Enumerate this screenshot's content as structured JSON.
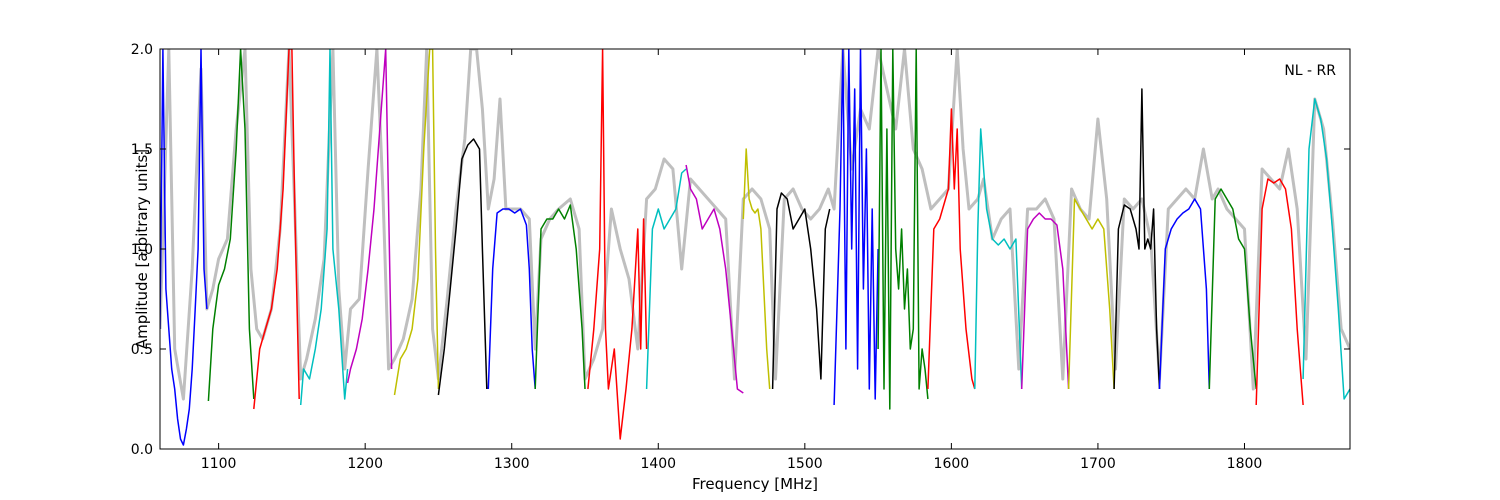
{
  "chart_data": {
    "type": "line",
    "xlabel": "Frequency [MHz]",
    "ylabel": "Amplitude [arbitrary units]",
    "annotation": "NL - RR",
    "xlim": [
      1060,
      1872
    ],
    "ylim": [
      0.0,
      2.0
    ],
    "x_ticks": [
      "1100",
      "1200",
      "1300",
      "1400",
      "1500",
      "1600",
      "1700",
      "1800"
    ],
    "x_tick_values": [
      1100,
      1200,
      1300,
      1400,
      1500,
      1600,
      1700,
      1800
    ],
    "y_ticks": [
      "0.0",
      "0.5",
      "1.0",
      "1.5",
      "2.0"
    ],
    "y_tick_values": [
      0.0,
      0.5,
      1.0,
      1.5,
      2.0
    ],
    "grid": false,
    "reference": {
      "color": "#bfbfbf",
      "x": [
        1060,
        1066,
        1070,
        1076,
        1082,
        1088,
        1092,
        1096,
        1100,
        1106,
        1112,
        1118,
        1122,
        1126,
        1130,
        1136,
        1142,
        1148,
        1152,
        1156,
        1160,
        1166,
        1172,
        1178,
        1182,
        1186,
        1190,
        1196,
        1202,
        1208,
        1212,
        1216,
        1220,
        1226,
        1232,
        1238,
        1242,
        1246,
        1250,
        1256,
        1262,
        1268,
        1272,
        1276,
        1280,
        1284,
        1288,
        1292,
        1296,
        1300,
        1306,
        1312,
        1316,
        1320,
        1326,
        1332,
        1340,
        1346,
        1350,
        1356,
        1362,
        1368,
        1374,
        1380,
        1386,
        1392,
        1398,
        1404,
        1410,
        1416,
        1422,
        1428,
        1434,
        1440,
        1446,
        1452,
        1458,
        1464,
        1470,
        1476,
        1480,
        1486,
        1492,
        1498,
        1504,
        1510,
        1516,
        1520,
        1526,
        1532,
        1538,
        1544,
        1550,
        1556,
        1562,
        1568,
        1574,
        1580,
        1586,
        1592,
        1598,
        1604,
        1608,
        1612,
        1618,
        1622,
        1628,
        1634,
        1640,
        1646,
        1652,
        1658,
        1664,
        1670,
        1676,
        1682,
        1688,
        1694,
        1700,
        1706,
        1712,
        1718,
        1724,
        1730,
        1736,
        1742,
        1748,
        1754,
        1760,
        1766,
        1772,
        1778,
        1782,
        1788,
        1794,
        1800,
        1806,
        1812,
        1818,
        1824,
        1830,
        1836,
        1842,
        1848,
        1854,
        1860,
        1866,
        1872
      ],
      "y": [
        0.6,
        2.0,
        0.5,
        0.25,
        0.9,
        1.9,
        0.7,
        0.8,
        0.95,
        1.05,
        1.6,
        2.0,
        0.9,
        0.6,
        0.55,
        0.7,
        1.1,
        2.0,
        1.2,
        0.35,
        0.45,
        0.65,
        0.95,
        2.0,
        0.8,
        0.4,
        0.7,
        0.75,
        1.4,
        2.0,
        1.3,
        0.4,
        0.45,
        0.55,
        0.75,
        1.3,
        2.0,
        0.6,
        0.35,
        0.75,
        1.2,
        1.55,
        2.0,
        2.0,
        1.7,
        1.2,
        1.35,
        1.75,
        1.2,
        1.2,
        1.2,
        1.15,
        0.5,
        1.05,
        1.15,
        1.2,
        1.25,
        1.1,
        0.35,
        0.45,
        0.6,
        1.2,
        1.0,
        0.85,
        0.5,
        1.25,
        1.3,
        1.45,
        1.4,
        0.9,
        1.35,
        1.3,
        1.25,
        1.2,
        1.15,
        0.35,
        1.25,
        1.3,
        1.25,
        1.1,
        0.35,
        1.25,
        1.3,
        1.2,
        1.15,
        1.2,
        1.3,
        1.2,
        2.0,
        1.4,
        1.7,
        1.6,
        2.0,
        1.8,
        1.6,
        2.0,
        1.5,
        1.4,
        1.2,
        1.25,
        1.3,
        2.0,
        1.5,
        1.2,
        1.25,
        1.35,
        1.05,
        1.15,
        1.2,
        0.4,
        1.2,
        1.2,
        1.25,
        1.15,
        0.35,
        1.3,
        1.2,
        1.15,
        1.65,
        1.25,
        0.4,
        1.25,
        1.2,
        1.25,
        1.05,
        0.35,
        1.2,
        1.25,
        1.3,
        1.25,
        1.5,
        1.25,
        1.3,
        1.2,
        1.15,
        1.1,
        0.3,
        1.4,
        1.35,
        1.3,
        1.5,
        1.2,
        0.45,
        1.75,
        1.6,
        1.15,
        0.6,
        0.5
      ]
    },
    "series": [
      {
        "color": "#0000ff",
        "x": [
          1060,
          1062,
          1064,
          1066,
          1068,
          1070,
          1072,
          1074,
          1076,
          1078,
          1080,
          1082,
          1084,
          1086,
          1088,
          1090,
          1092
        ],
        "y": [
          0.6,
          2.0,
          0.8,
          0.6,
          0.4,
          0.3,
          0.15,
          0.05,
          0.02,
          0.1,
          0.2,
          0.4,
          0.7,
          1.0,
          2.0,
          0.9,
          0.7
        ]
      },
      {
        "color": "#008000",
        "x": [
          1093,
          1096,
          1100,
          1104,
          1108,
          1112,
          1115,
          1118,
          1121,
          1124
        ],
        "y": [
          0.24,
          0.6,
          0.82,
          0.9,
          1.05,
          1.5,
          2.0,
          1.6,
          0.6,
          0.25
        ]
      },
      {
        "color": "#ff0000",
        "x": [
          1124,
          1128,
          1132,
          1136,
          1140,
          1144,
          1148,
          1150,
          1152,
          1155
        ],
        "y": [
          0.2,
          0.5,
          0.6,
          0.7,
          0.9,
          1.3,
          2.0,
          2.0,
          1.2,
          0.25
        ]
      },
      {
        "color": "#00bfbf",
        "x": [
          1156,
          1158,
          1162,
          1166,
          1170,
          1174,
          1176,
          1178,
          1182,
          1186,
          1188
        ],
        "y": [
          0.22,
          0.4,
          0.35,
          0.5,
          0.7,
          1.1,
          2.0,
          1.0,
          0.7,
          0.25,
          0.4
        ]
      },
      {
        "color": "#bf00bf",
        "x": [
          1188,
          1190,
          1194,
          1198,
          1202,
          1206,
          1210,
          1214,
          1218
        ],
        "y": [
          0.33,
          0.4,
          0.5,
          0.65,
          0.9,
          1.2,
          1.6,
          2.0,
          0.4
        ]
      },
      {
        "color": "#bfbf00",
        "x": [
          1220,
          1224,
          1228,
          1232,
          1236,
          1240,
          1244,
          1246,
          1248,
          1250
        ],
        "y": [
          0.27,
          0.45,
          0.5,
          0.6,
          0.85,
          1.5,
          2.0,
          2.0,
          1.0,
          0.3
        ]
      },
      {
        "color": "#000000",
        "x": [
          1250,
          1254,
          1258,
          1262,
          1266,
          1270,
          1274,
          1278,
          1280,
          1283
        ],
        "y": [
          0.27,
          0.5,
          0.8,
          1.1,
          1.45,
          1.52,
          1.55,
          1.5,
          1.0,
          0.3
        ]
      },
      {
        "color": "#0000ff",
        "x": [
          1284,
          1287,
          1290,
          1294,
          1298,
          1302,
          1306,
          1310,
          1312,
          1314,
          1316
        ],
        "y": [
          0.3,
          0.9,
          1.18,
          1.2,
          1.2,
          1.18,
          1.2,
          1.12,
          0.9,
          0.5,
          0.3
        ]
      },
      {
        "color": "#008000",
        "x": [
          1316,
          1320,
          1324,
          1328,
          1332,
          1336,
          1340,
          1344,
          1348,
          1350
        ],
        "y": [
          0.3,
          1.1,
          1.15,
          1.15,
          1.2,
          1.15,
          1.22,
          1.0,
          0.6,
          0.3
        ]
      },
      {
        "color": "#ff0000",
        "x": [
          1352,
          1356,
          1360,
          1362,
          1364,
          1366,
          1370,
          1374,
          1378,
          1382,
          1386,
          1388,
          1390,
          1392
        ],
        "y": [
          0.3,
          0.6,
          1.0,
          2.0,
          0.6,
          0.3,
          0.5,
          0.05,
          0.3,
          0.6,
          1.1,
          0.5,
          1.15,
          0.5
        ]
      },
      {
        "color": "#00bfbf",
        "x": [
          1392,
          1396,
          1400,
          1404,
          1408,
          1412,
          1416,
          1419
        ],
        "y": [
          0.3,
          1.1,
          1.2,
          1.1,
          1.15,
          1.2,
          1.38,
          1.4
        ]
      },
      {
        "color": "#bf00bf",
        "x": [
          1419,
          1422,
          1426,
          1430,
          1434,
          1438,
          1442,
          1446,
          1450,
          1454,
          1458
        ],
        "y": [
          1.42,
          1.3,
          1.25,
          1.1,
          1.15,
          1.2,
          1.1,
          0.9,
          0.6,
          0.3,
          0.28
        ]
      },
      {
        "color": "#bfbf00",
        "x": [
          1458,
          1460,
          1462,
          1464,
          1466,
          1468,
          1470,
          1472,
          1474,
          1476
        ],
        "y": [
          1.15,
          1.5,
          1.25,
          1.2,
          1.18,
          1.2,
          1.1,
          0.8,
          0.5,
          0.3
        ]
      },
      {
        "color": "#000000",
        "x": [
          1478,
          1481,
          1484,
          1488,
          1492,
          1496,
          1500,
          1504,
          1508,
          1511,
          1514,
          1517
        ],
        "y": [
          0.3,
          1.2,
          1.28,
          1.25,
          1.1,
          1.15,
          1.2,
          1.0,
          0.7,
          0.35,
          1.1,
          1.2
        ]
      },
      {
        "color": "#0000ff",
        "x": [
          1520,
          1524,
          1526,
          1528,
          1530,
          1532,
          1534,
          1536,
          1538,
          1540,
          1542,
          1544,
          1546,
          1548,
          1550
        ],
        "y": [
          0.22,
          1.2,
          2.0,
          0.5,
          2.0,
          1.0,
          1.8,
          0.4,
          2.0,
          0.8,
          1.5,
          0.3,
          1.2,
          0.25,
          1.0
        ]
      },
      {
        "color": "#008000",
        "x": [
          1550,
          1552,
          1554,
          1556,
          1558,
          1560,
          1562,
          1564,
          1566,
          1568,
          1570,
          1572,
          1574,
          1576,
          1578,
          1580,
          1582,
          1584
        ],
        "y": [
          0.5,
          2.0,
          0.3,
          1.6,
          0.2,
          2.0,
          1.0,
          0.8,
          1.1,
          0.7,
          0.9,
          0.5,
          0.6,
          2.0,
          0.3,
          0.5,
          0.4,
          0.25
        ]
      },
      {
        "color": "#ff0000",
        "x": [
          1584,
          1588,
          1592,
          1596,
          1598,
          1600,
          1602,
          1604,
          1606,
          1610,
          1614,
          1616
        ],
        "y": [
          0.3,
          1.1,
          1.15,
          1.25,
          1.3,
          1.7,
          1.3,
          1.6,
          1.0,
          0.6,
          0.35,
          0.3
        ]
      },
      {
        "color": "#00bfbf",
        "x": [
          1616,
          1618,
          1620,
          1622,
          1624,
          1628,
          1632,
          1636,
          1640,
          1644,
          1648
        ],
        "y": [
          0.3,
          1.1,
          1.6,
          1.4,
          1.2,
          1.05,
          1.02,
          1.05,
          1.0,
          1.05,
          0.3
        ]
      },
      {
        "color": "#bf00bf",
        "x": [
          1648,
          1652,
          1656,
          1660,
          1664,
          1668,
          1672,
          1676,
          1680
        ],
        "y": [
          0.3,
          1.1,
          1.15,
          1.18,
          1.15,
          1.15,
          1.12,
          0.9,
          0.3
        ]
      },
      {
        "color": "#bfbf00",
        "x": [
          1680,
          1684,
          1688,
          1692,
          1696,
          1700,
          1704,
          1708,
          1711
        ],
        "y": [
          0.3,
          1.25,
          1.2,
          1.15,
          1.1,
          1.15,
          1.1,
          0.7,
          0.3
        ]
      },
      {
        "color": "#000000",
        "x": [
          1711,
          1714,
          1718,
          1722,
          1726,
          1728,
          1730,
          1732,
          1734,
          1736,
          1738,
          1740,
          1742
        ],
        "y": [
          0.3,
          1.1,
          1.22,
          1.2,
          1.1,
          1.0,
          1.8,
          1.0,
          1.05,
          1.0,
          1.2,
          0.6,
          0.3
        ]
      },
      {
        "color": "#0000ff",
        "x": [
          1742,
          1746,
          1750,
          1754,
          1758,
          1762,
          1766,
          1770,
          1774,
          1776
        ],
        "y": [
          0.3,
          1.0,
          1.1,
          1.15,
          1.18,
          1.2,
          1.25,
          1.2,
          0.8,
          0.3
        ]
      },
      {
        "color": "#008000",
        "x": [
          1776,
          1780,
          1784,
          1788,
          1792,
          1796,
          1800,
          1804,
          1808
        ],
        "y": [
          0.3,
          1.25,
          1.3,
          1.25,
          1.2,
          1.05,
          1.0,
          0.6,
          0.3
        ]
      },
      {
        "color": "#ff0000",
        "x": [
          1808,
          1812,
          1816,
          1820,
          1824,
          1828,
          1832,
          1836,
          1840
        ],
        "y": [
          0.22,
          1.2,
          1.35,
          1.33,
          1.35,
          1.3,
          1.1,
          0.6,
          0.22
        ]
      },
      {
        "color": "#00bfbf",
        "x": [
          1840,
          1844,
          1848,
          1852,
          1856,
          1860,
          1864,
          1868,
          1872
        ],
        "y": [
          0.35,
          1.5,
          1.75,
          1.65,
          1.45,
          1.1,
          0.7,
          0.25,
          0.3
        ]
      }
    ]
  }
}
